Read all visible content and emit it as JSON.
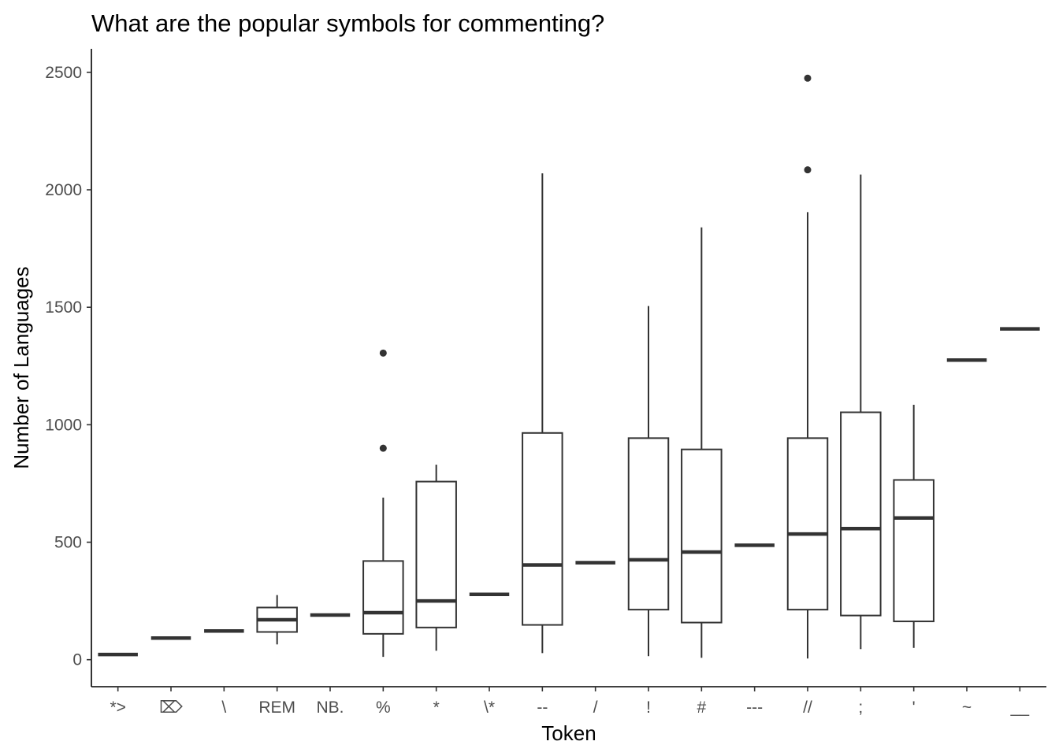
{
  "chart_data": {
    "type": "boxplot",
    "title": "What are the popular symbols for commenting?",
    "xlabel": "Token",
    "ylabel": "Number of Languages",
    "ylim": [
      -115,
      2600
    ],
    "yticks": [
      0,
      500,
      1000,
      1500,
      2000,
      2500
    ],
    "grid": false,
    "legend": "none",
    "box_color": "#333333",
    "categories": [
      "*>",
      "⌦",
      "\\",
      "REM",
      "NB.",
      "%",
      "*",
      "\\*",
      "--",
      "/",
      "!",
      "#",
      "---",
      "//",
      ";",
      "'",
      "~",
      "__"
    ],
    "boxes": [
      {
        "label": "*>",
        "min": 22,
        "q1": 22,
        "median": 22,
        "q3": 22,
        "max": 22,
        "outliers": []
      },
      {
        "label": "⌦",
        "min": 92,
        "q1": 92,
        "median": 92,
        "q3": 92,
        "max": 92,
        "outliers": []
      },
      {
        "label": "\\",
        "min": 122,
        "q1": 122,
        "median": 122,
        "q3": 122,
        "max": 122,
        "outliers": []
      },
      {
        "label": "REM",
        "min": 65,
        "q1": 118,
        "median": 170,
        "q3": 222,
        "max": 275,
        "outliers": []
      },
      {
        "label": "NB.",
        "min": 190,
        "q1": 190,
        "median": 190,
        "q3": 190,
        "max": 190,
        "outliers": []
      },
      {
        "label": "%",
        "min": 12,
        "q1": 110,
        "median": 200,
        "q3": 420,
        "max": 690,
        "outliers": [
          900,
          1305
        ]
      },
      {
        "label": "*",
        "min": 38,
        "q1": 137,
        "median": 250,
        "q3": 758,
        "max": 830,
        "outliers": []
      },
      {
        "label": "\\*",
        "min": 278,
        "q1": 278,
        "median": 278,
        "q3": 278,
        "max": 278,
        "outliers": []
      },
      {
        "label": "--",
        "min": 28,
        "q1": 148,
        "median": 403,
        "q3": 965,
        "max": 2070,
        "outliers": []
      },
      {
        "label": "/",
        "min": 413,
        "q1": 413,
        "median": 413,
        "q3": 413,
        "max": 413,
        "outliers": []
      },
      {
        "label": "!",
        "min": 15,
        "q1": 213,
        "median": 425,
        "q3": 943,
        "max": 1505,
        "outliers": []
      },
      {
        "label": "#",
        "min": 8,
        "q1": 158,
        "median": 458,
        "q3": 895,
        "max": 1840,
        "outliers": []
      },
      {
        "label": "---",
        "min": 487,
        "q1": 487,
        "median": 487,
        "q3": 487,
        "max": 487,
        "outliers": []
      },
      {
        "label": "//",
        "min": 5,
        "q1": 213,
        "median": 535,
        "q3": 943,
        "max": 1905,
        "outliers": [
          2085,
          2475
        ]
      },
      {
        "label": ";",
        "min": 45,
        "q1": 188,
        "median": 558,
        "q3": 1053,
        "max": 2065,
        "outliers": []
      },
      {
        "label": "'",
        "min": 50,
        "q1": 163,
        "median": 603,
        "q3": 765,
        "max": 1085,
        "outliers": []
      },
      {
        "label": "~",
        "min": 1275,
        "q1": 1275,
        "median": 1275,
        "q3": 1275,
        "max": 1275,
        "outliers": []
      },
      {
        "label": "__",
        "min": 1408,
        "q1": 1408,
        "median": 1408,
        "q3": 1408,
        "max": 1408,
        "outliers": []
      }
    ]
  }
}
